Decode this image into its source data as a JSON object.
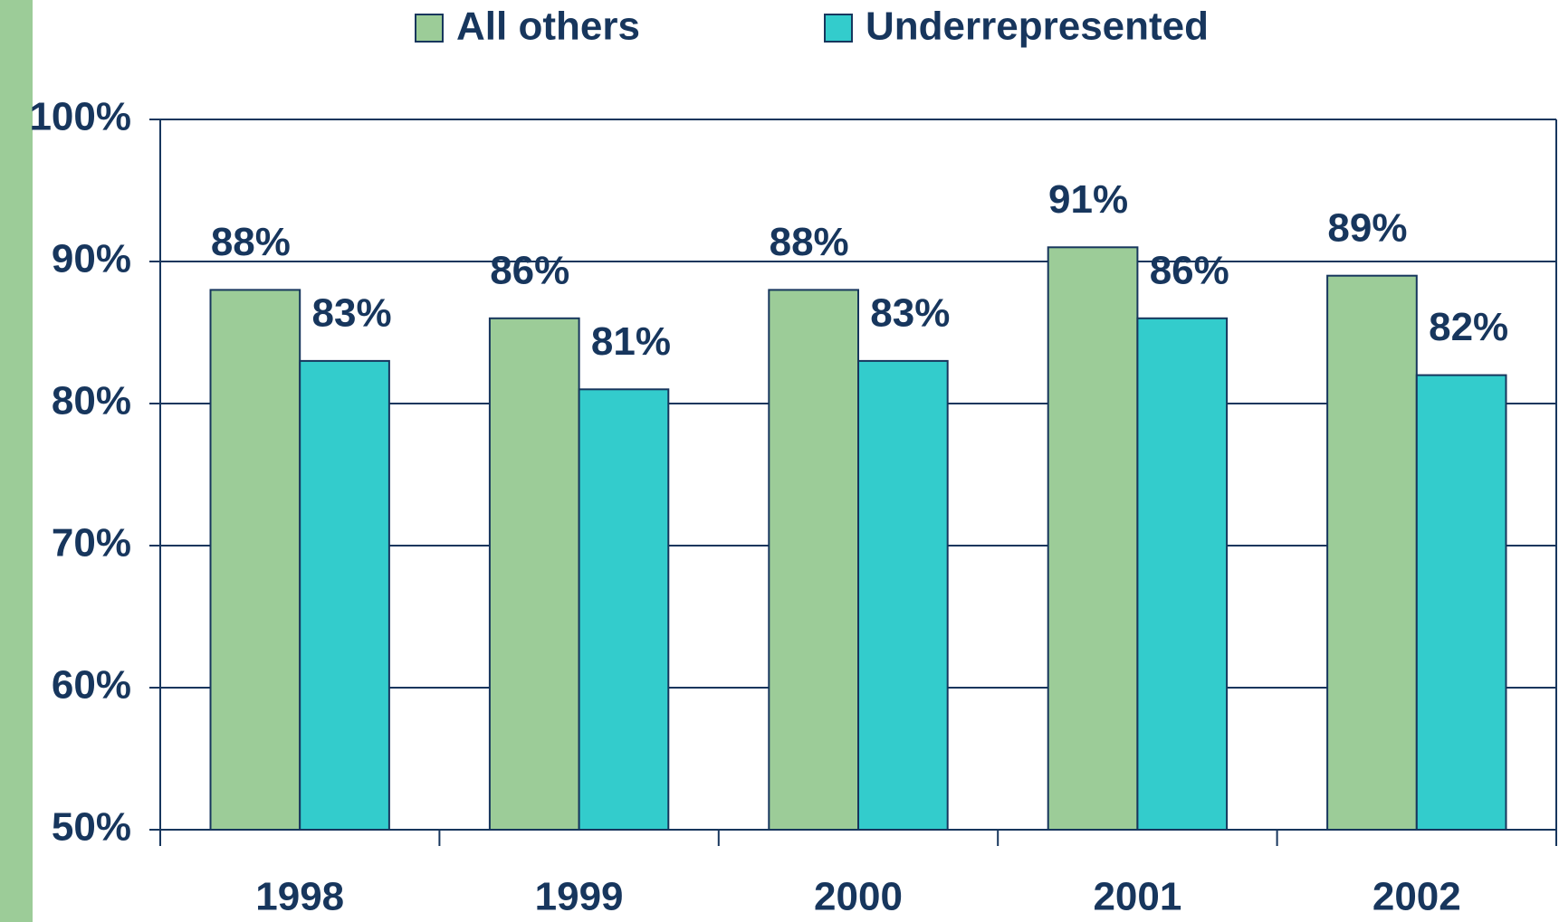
{
  "chart_data": {
    "type": "bar",
    "categories": [
      "1998",
      "1999",
      "2000",
      "2001",
      "2002"
    ],
    "series": [
      {
        "name": "All others",
        "color": "#9ccc98",
        "values": [
          88,
          86,
          88,
          91,
          89
        ],
        "value_labels": [
          "88%",
          "86%",
          "88%",
          "91%",
          "89%"
        ]
      },
      {
        "name": "Underrepresented",
        "color": "#33cccc",
        "values": [
          83,
          81,
          83,
          86,
          82
        ],
        "value_labels": [
          "83%",
          "81%",
          "83%",
          "86%",
          "82%"
        ]
      }
    ],
    "ylim": [
      50,
      100
    ],
    "yticks": [
      {
        "value": 50,
        "label": "50%"
      },
      {
        "value": 60,
        "label": "60%"
      },
      {
        "value": 70,
        "label": "70%"
      },
      {
        "value": 80,
        "label": "80%"
      },
      {
        "value": 90,
        "label": "90%"
      },
      {
        "value": 100,
        "label": "100%"
      }
    ],
    "grid": true,
    "legend": "top"
  }
}
